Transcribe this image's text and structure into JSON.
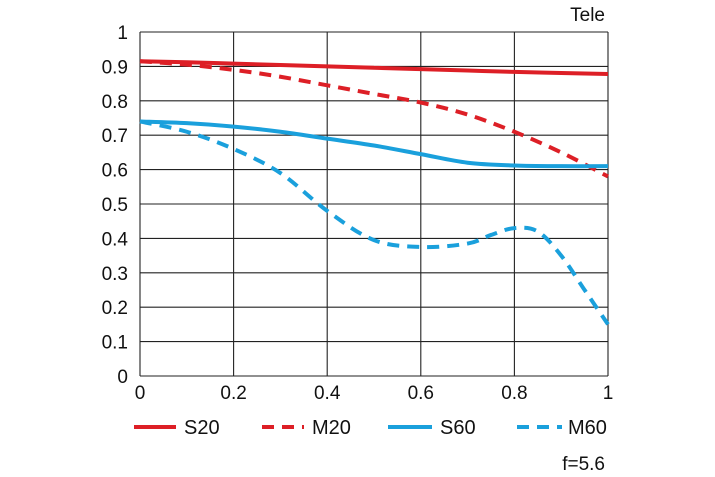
{
  "chart_data": {
    "type": "line",
    "title": "Tele",
    "footnote": "f=5.6",
    "xlabel": "",
    "ylabel": "",
    "xlim": [
      0,
      1
    ],
    "ylim": [
      0,
      1
    ],
    "grid": true,
    "x_ticks": [
      0,
      0.2,
      0.4,
      0.6,
      0.8,
      1
    ],
    "x_tick_labels": [
      "0",
      "0.2",
      "0.4",
      "0.6",
      "0.8",
      "1"
    ],
    "y_ticks": [
      0,
      0.1,
      0.2,
      0.3,
      0.4,
      0.5,
      0.6,
      0.7,
      0.8,
      0.9,
      1
    ],
    "y_tick_labels": [
      "0",
      "0.1",
      "0.2",
      "0.3",
      "0.4",
      "0.5",
      "0.6",
      "0.7",
      "0.8",
      "0.9",
      "1"
    ],
    "legend_position": "bottom",
    "series": [
      {
        "name": "S20",
        "color": "#dd1f26",
        "dash": "solid",
        "x": [
          0,
          0.1,
          0.2,
          0.3,
          0.4,
          0.5,
          0.6,
          0.7,
          0.8,
          0.9,
          1
        ],
        "values": [
          0.915,
          0.912,
          0.908,
          0.904,
          0.9,
          0.896,
          0.892,
          0.888,
          0.884,
          0.881,
          0.878
        ]
      },
      {
        "name": "M20",
        "color": "#dd1f26",
        "dash": "dashed",
        "x": [
          0,
          0.1,
          0.2,
          0.3,
          0.4,
          0.5,
          0.6,
          0.7,
          0.8,
          0.9,
          1
        ],
        "values": [
          0.915,
          0.905,
          0.89,
          0.87,
          0.845,
          0.82,
          0.795,
          0.76,
          0.71,
          0.65,
          0.58
        ]
      },
      {
        "name": "S60",
        "color": "#1aa0dc",
        "dash": "solid",
        "x": [
          0,
          0.1,
          0.2,
          0.3,
          0.4,
          0.5,
          0.6,
          0.7,
          0.8,
          0.9,
          1
        ],
        "values": [
          0.74,
          0.735,
          0.725,
          0.71,
          0.69,
          0.67,
          0.645,
          0.62,
          0.612,
          0.61,
          0.61
        ]
      },
      {
        "name": "M60",
        "color": "#1aa0dc",
        "dash": "dashed",
        "x": [
          0,
          0.1,
          0.2,
          0.3,
          0.4,
          0.5,
          0.6,
          0.7,
          0.75,
          0.8,
          0.85,
          0.9,
          0.95,
          1
        ],
        "values": [
          0.74,
          0.71,
          0.66,
          0.59,
          0.48,
          0.395,
          0.375,
          0.385,
          0.41,
          0.43,
          0.42,
          0.35,
          0.25,
          0.15
        ]
      }
    ]
  }
}
